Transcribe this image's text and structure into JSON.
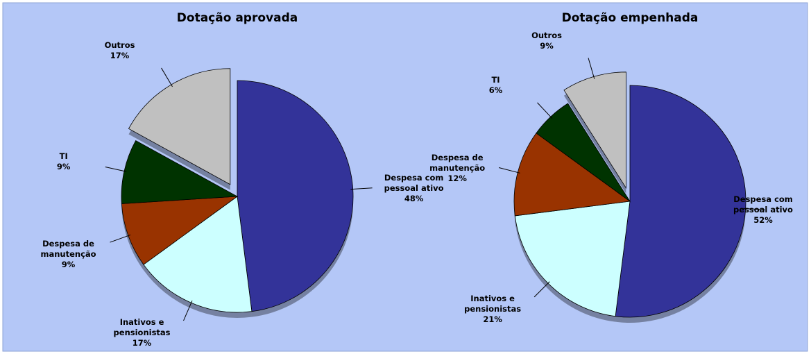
{
  "chart_data": [
    {
      "type": "pie",
      "title": "Dotação aprovada",
      "categories": [
        "Despesa com pessoal ativo",
        "Inativos e pensionistas",
        "Despesa de manutenção",
        "TI",
        "Outros"
      ],
      "values": [
        48,
        17,
        9,
        9,
        17
      ],
      "value_labels": [
        "48%",
        "17%",
        "9%",
        "9%",
        "17%"
      ],
      "colors": [
        "#333399",
        "#ccffff",
        "#993300",
        "#003300",
        "#c0c0c0"
      ],
      "explode": [
        false,
        false,
        false,
        false,
        true
      ]
    },
    {
      "type": "pie",
      "title": "Dotação empenhada",
      "categories": [
        "Despesa com pessoal ativo",
        "Inativos e pensionistas",
        "Despesa de manutenção",
        "TI",
        "Outros"
      ],
      "values": [
        52,
        21,
        12,
        6,
        9
      ],
      "value_labels": [
        "52%",
        "21%",
        "12%",
        "6%",
        "9%"
      ],
      "colors": [
        "#333399",
        "#ccffff",
        "#993300",
        "#003300",
        "#c0c0c0"
      ],
      "explode": [
        false,
        false,
        false,
        false,
        true
      ]
    }
  ]
}
